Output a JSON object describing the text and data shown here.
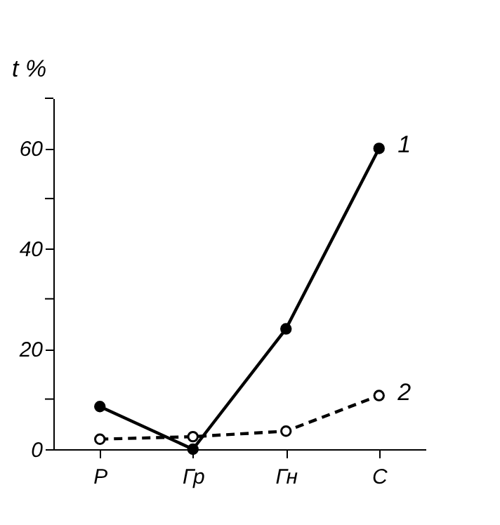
{
  "chart_data": {
    "type": "line",
    "ylabel": "t %",
    "categories": [
      "Р",
      "Гр",
      "Гн",
      "С"
    ],
    "series": [
      {
        "name": "1",
        "color": "#000000",
        "values": [
          8.5,
          0,
          24,
          60
        ],
        "line_style": "solid"
      },
      {
        "name": "2",
        "color": "#000000",
        "values": [
          2,
          2.5,
          3.6,
          10.7
        ],
        "line_style": "dashed"
      }
    ],
    "ylim": [
      0,
      70
    ],
    "yticks": [
      0,
      {
        "value": 10,
        "label": null
      },
      20,
      {
        "value": 30,
        "label": null
      },
      40,
      {
        "value": 50,
        "label": null
      },
      60,
      {
        "value": 70,
        "label": null
      }
    ],
    "grid": false,
    "marker": "circle"
  }
}
